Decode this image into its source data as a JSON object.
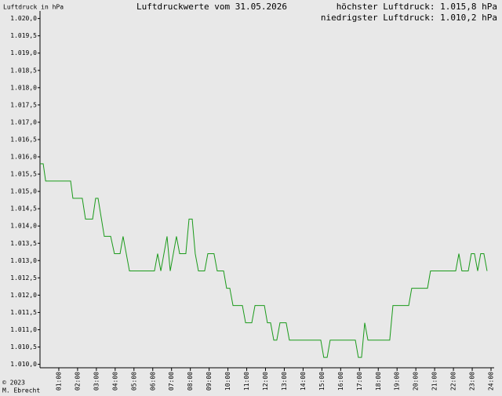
{
  "chart_data": {
    "type": "line",
    "title": "Luftdruckwerte vom 31.05.2026",
    "y_label": "Luftdruck in hPa",
    "annotations": [
      "höchster Luftdruck: 1.015,8 hPa",
      "niedrigster Luftdruck: 1.010,2 hPa"
    ],
    "credits": [
      "© 2023",
      "M. Ebrecht"
    ],
    "color": "#1a9a1a",
    "x": [
      0,
      0.17,
      0.3,
      1.63,
      1.75,
      2.25,
      2.42,
      2.8,
      2.96,
      3.09,
      3.42,
      3.76,
      3.96,
      4.26,
      4.42,
      4.76,
      6.09,
      6.26,
      6.43,
      6.76,
      6.93,
      7.26,
      7.43,
      7.76,
      7.93,
      8.1,
      8.26,
      8.43,
      8.76,
      8.93,
      9.26,
      9.43,
      9.77,
      9.93,
      10.1,
      10.27,
      10.77,
      10.94,
      11.27,
      11.44,
      11.94,
      12.1,
      12.27,
      12.44,
      12.6,
      12.77,
      13.1,
      13.27,
      14.94,
      15.1,
      15.28,
      15.44,
      16.78,
      16.94,
      17.11,
      17.28,
      17.45,
      18.61,
      18.78,
      19.62,
      19.78,
      20.62,
      20.78,
      22.12,
      22.29,
      22.45,
      22.79,
      22.95,
      23.12,
      23.29,
      23.45,
      23.62,
      23.79
    ],
    "values": [
      1015.8,
      1015.8,
      1015.3,
      1015.3,
      1014.8,
      1014.8,
      1014.2,
      1014.2,
      1014.8,
      1014.8,
      1013.7,
      1013.7,
      1013.2,
      1013.2,
      1013.7,
      1012.7,
      1012.7,
      1013.2,
      1012.7,
      1013.7,
      1012.7,
      1013.7,
      1013.2,
      1013.2,
      1014.2,
      1014.2,
      1013.2,
      1012.7,
      1012.7,
      1013.2,
      1013.2,
      1012.7,
      1012.7,
      1012.2,
      1012.2,
      1011.7,
      1011.7,
      1011.2,
      1011.2,
      1011.7,
      1011.7,
      1011.2,
      1011.2,
      1010.7,
      1010.7,
      1011.2,
      1011.2,
      1010.7,
      1010.7,
      1010.2,
      1010.2,
      1010.7,
      1010.7,
      1010.2,
      1010.2,
      1011.2,
      1010.7,
      1010.7,
      1011.7,
      1011.7,
      1012.2,
      1012.2,
      1012.7,
      1012.7,
      1013.2,
      1012.7,
      1012.7,
      1013.2,
      1013.2,
      1012.7,
      1013.2,
      1013.2,
      1012.7
    ],
    "xlim": [
      0,
      24
    ],
    "xticks": [
      {
        "value": 1,
        "label": "01:00"
      },
      {
        "value": 2,
        "label": "02:00"
      },
      {
        "value": 3,
        "label": "03:00"
      },
      {
        "value": 4,
        "label": "04:00"
      },
      {
        "value": 5,
        "label": "05:00"
      },
      {
        "value": 6,
        "label": "06:00"
      },
      {
        "value": 7,
        "label": "07:00"
      },
      {
        "value": 8,
        "label": "08:00"
      },
      {
        "value": 9,
        "label": "09:00"
      },
      {
        "value": 10,
        "label": "10:00"
      },
      {
        "value": 11,
        "label": "11:00"
      },
      {
        "value": 12,
        "label": "12:00"
      },
      {
        "value": 13,
        "label": "13:00"
      },
      {
        "value": 14,
        "label": "14:00"
      },
      {
        "value": 15,
        "label": "15:00"
      },
      {
        "value": 16,
        "label": "16:00"
      },
      {
        "value": 17,
        "label": "17:00"
      },
      {
        "value": 18,
        "label": "18:00"
      },
      {
        "value": 19,
        "label": "19:00"
      },
      {
        "value": 20,
        "label": "20:00"
      },
      {
        "value": 21,
        "label": "21:00"
      },
      {
        "value": 22,
        "label": "22:00"
      },
      {
        "value": 23,
        "label": "23:00"
      },
      {
        "value": 24,
        "label": "24:00"
      }
    ],
    "ylim": [
      1009.9,
      1020.2
    ],
    "yticks": [
      {
        "value": 1010,
        "label": "1.010,0"
      },
      {
        "value": 1010.5,
        "label": "1.010,5"
      },
      {
        "value": 1011,
        "label": "1.011,0"
      },
      {
        "value": 1011.5,
        "label": "1.011,5"
      },
      {
        "value": 1012,
        "label": "1.012,0"
      },
      {
        "value": 1012.5,
        "label": "1.012,5"
      },
      {
        "value": 1013,
        "label": "1.013,0"
      },
      {
        "value": 1013.5,
        "label": "1.013,5"
      },
      {
        "value": 1014,
        "label": "1.014,0"
      },
      {
        "value": 1014.5,
        "label": "1.014,5"
      },
      {
        "value": 1015,
        "label": "1.015,0"
      },
      {
        "value": 1015.5,
        "label": "1.015,5"
      },
      {
        "value": 1016,
        "label": "1.016,0"
      },
      {
        "value": 1016.5,
        "label": "1.016,5"
      },
      {
        "value": 1017,
        "label": "1.017,0"
      },
      {
        "value": 1017.5,
        "label": "1.017,5"
      },
      {
        "value": 1018,
        "label": "1.018,0"
      },
      {
        "value": 1018.5,
        "label": "1.018,5"
      },
      {
        "value": 1019,
        "label": "1.019,0"
      },
      {
        "value": 1019.5,
        "label": "1.019,5"
      },
      {
        "value": 1020,
        "label": "1.020,0"
      }
    ],
    "grid": false
  }
}
